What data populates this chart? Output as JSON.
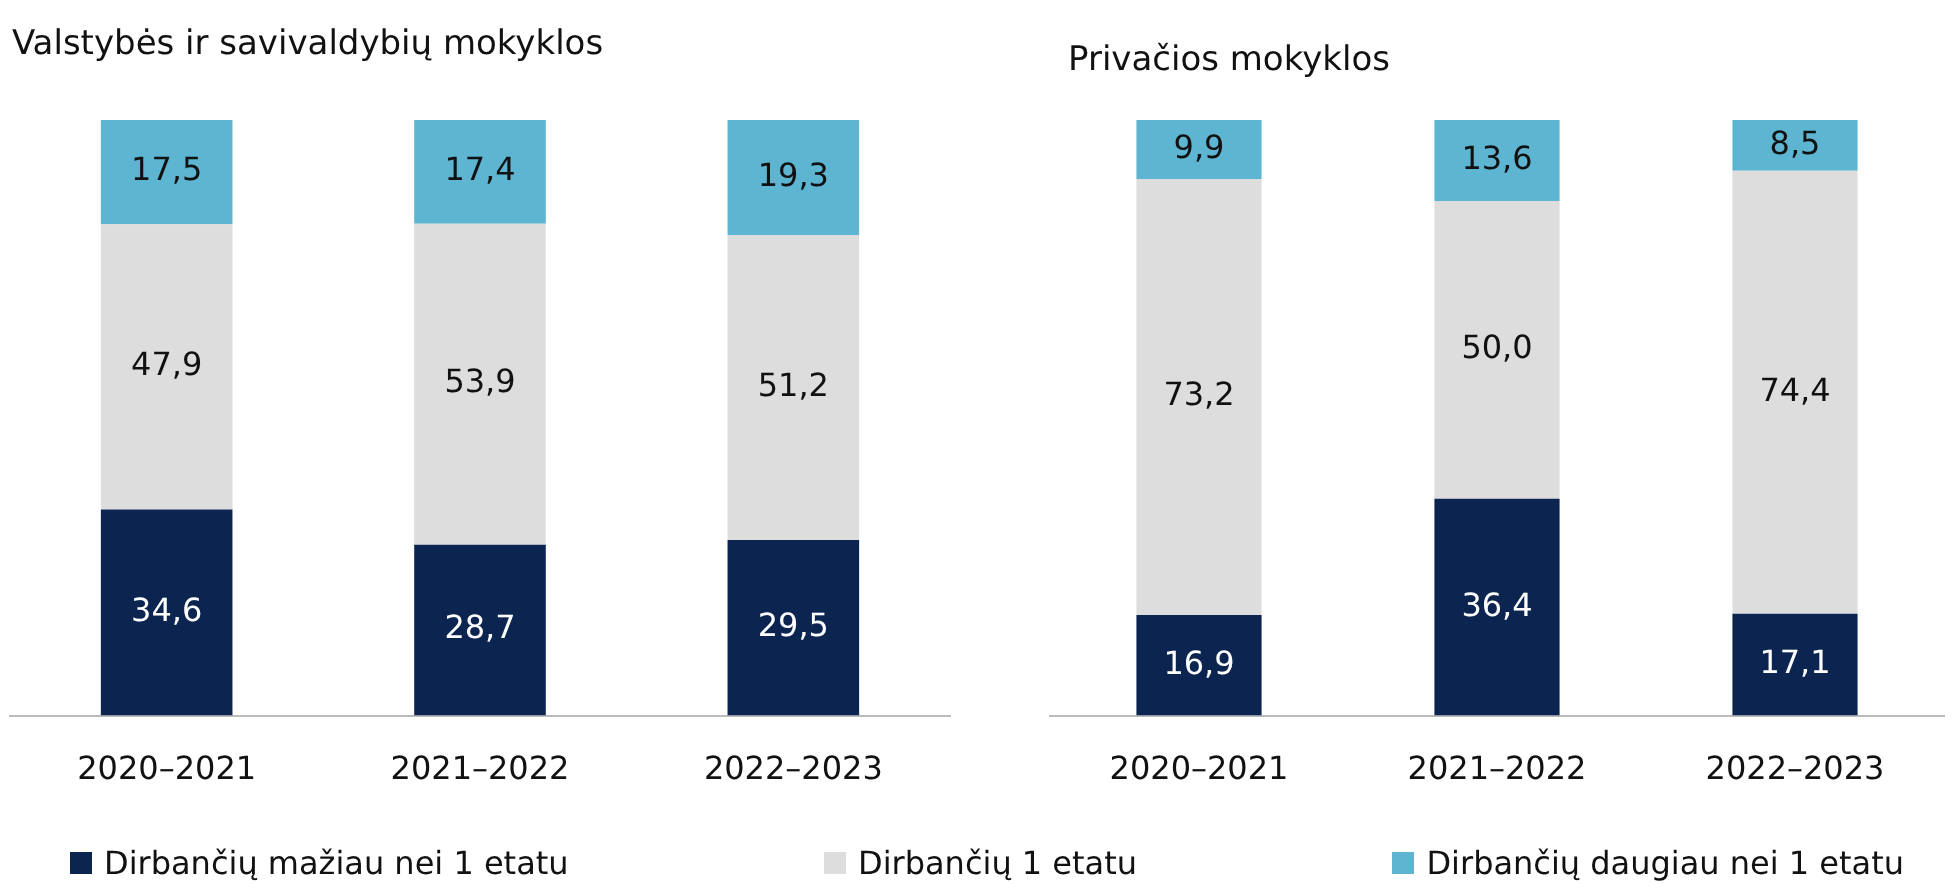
{
  "chart_data": [
    {
      "type": "bar",
      "title": "Valstybės ir savivaldybių mokyklos",
      "categories": [
        "2020–2021",
        "2021–2022",
        "2022–2023"
      ],
      "stacked": true,
      "legend": "bottom",
      "series": [
        {
          "name": "Dirbančių mažiau nei 1 etatu",
          "color": "#0b2550",
          "values": [
            34.6,
            28.7,
            29.5
          ],
          "value_labels": [
            "34,6",
            "28,7",
            "29,5"
          ]
        },
        {
          "name": "Dirbančių 1 etatu",
          "color": "#dddddd",
          "values": [
            47.9,
            53.9,
            51.2
          ],
          "value_labels": [
            "47,9",
            "53,9",
            "51,2"
          ]
        },
        {
          "name": "Dirbančių daugiau nei 1 etatu",
          "color": "#5db5d2",
          "values": [
            17.5,
            17.4,
            19.3
          ],
          "value_labels": [
            "17,5",
            "17,4",
            "19,3"
          ]
        }
      ]
    },
    {
      "type": "bar",
      "title": "Privačios mokyklos",
      "categories": [
        "2020–2021",
        "2021–2022",
        "2022–2023"
      ],
      "stacked": true,
      "series": [
        {
          "color": "#0b2550",
          "values": [
            16.9,
            36.4,
            17.1
          ],
          "value_labels": [
            "16,9",
            "36,4",
            "17,1"
          ]
        },
        {
          "color": "#dddddd",
          "values": [
            73.2,
            50.0,
            74.4
          ],
          "value_labels": [
            "73,2",
            "50,0",
            "74,4"
          ]
        },
        {
          "color": "#5db5d2",
          "values": [
            9.9,
            13.6,
            8.5
          ],
          "value_labels": [
            "9,9",
            "13,6",
            "8,5"
          ]
        }
      ]
    }
  ]
}
